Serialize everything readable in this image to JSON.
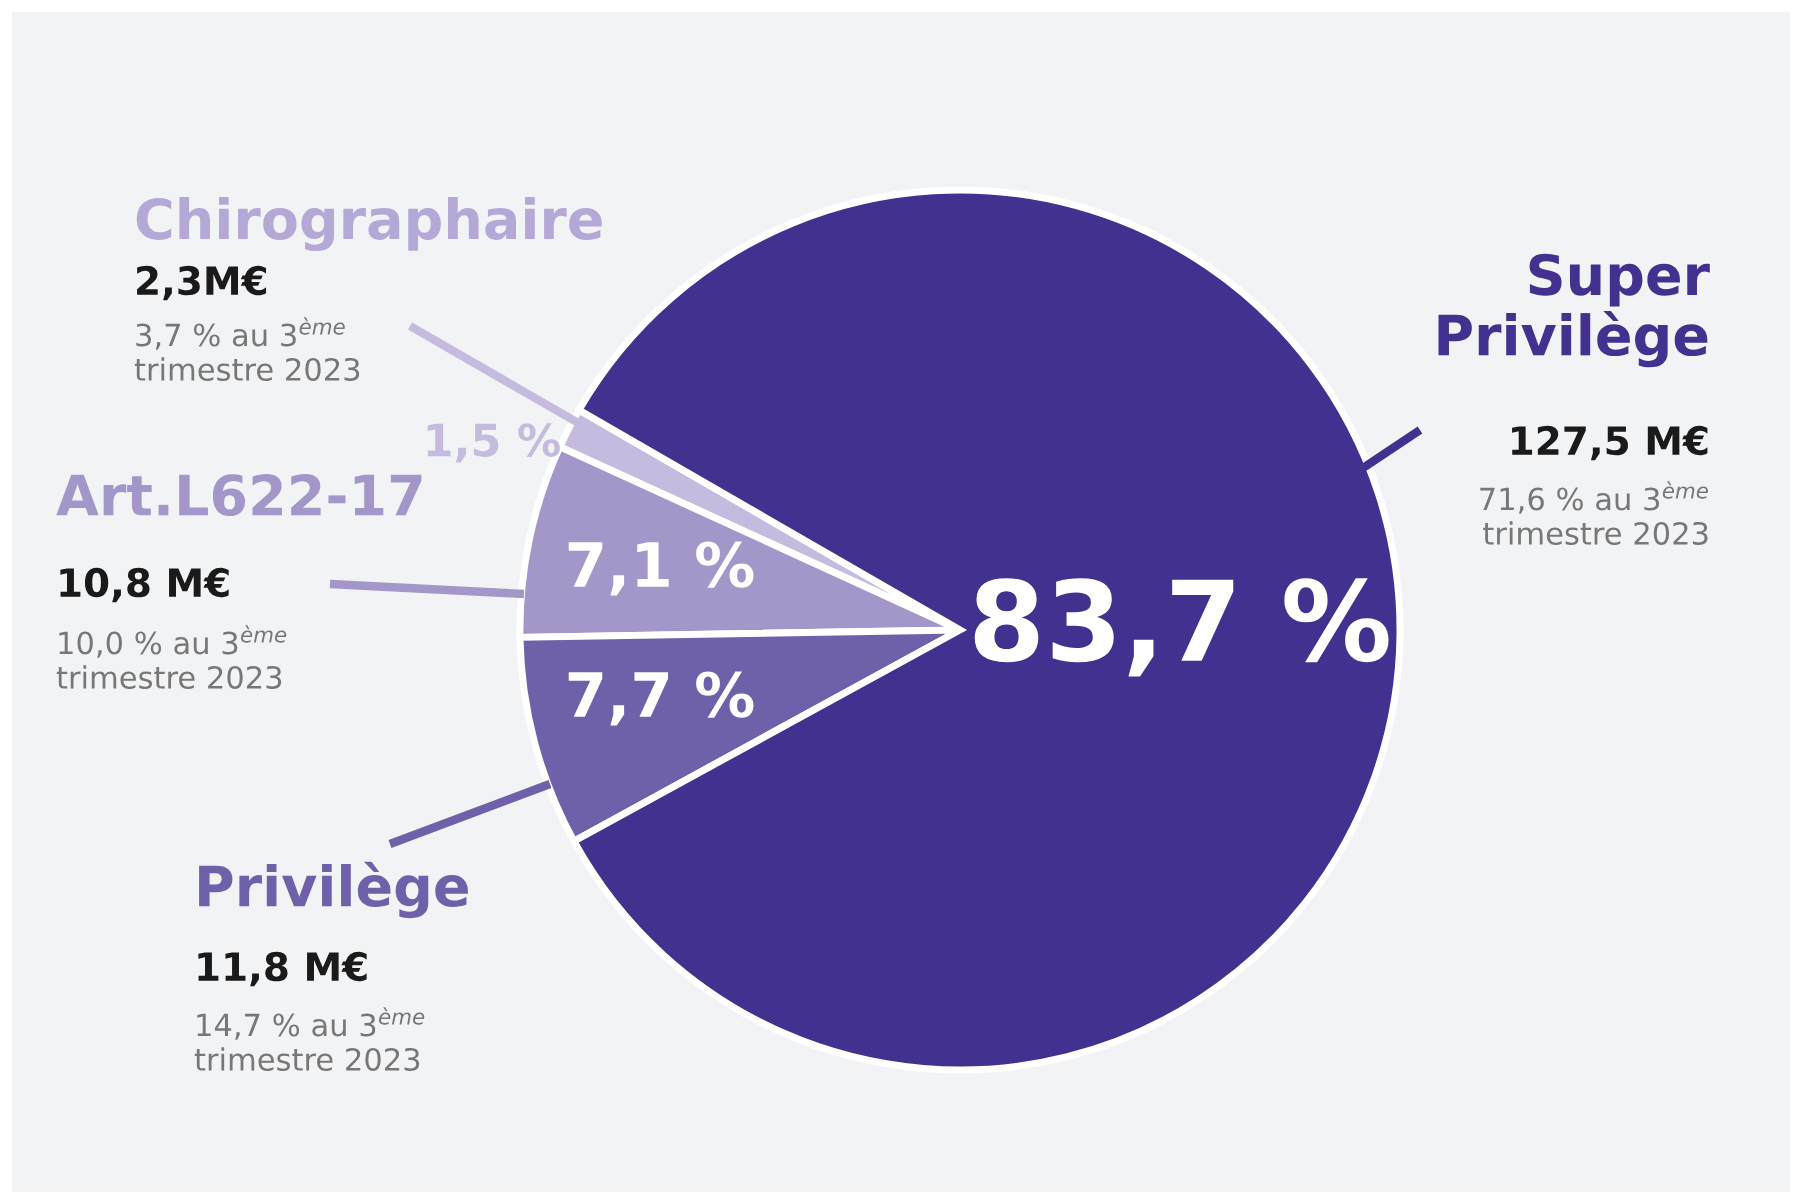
{
  "chart_data": {
    "type": "pie",
    "categories": [
      "Chirographaire",
      "Art.L622-17",
      "Privilège",
      "Super Privilège"
    ],
    "values": [
      1.5,
      7.1,
      7.7,
      83.7
    ],
    "colors": [
      "#c4bbde",
      "#a396c9",
      "#6f60aa",
      "#43318f"
    ],
    "value_labels": [
      "1,5 %",
      "7,1 %",
      "7,7 %",
      "83,7 %"
    ],
    "annotations": [
      "2,3M€",
      "3,7 % au 3$^{ème}$\ntrimestre 2023",
      "10,8 M€",
      "10,0 % au 3$^{ème}$\ntrimestre 2023",
      "11,8 M€",
      "14,7 % au 3$^{ème}$\ntrimestre 2023",
      "127,5 M€",
      "71,6 % au 3$^{ème}$\ntrimestre 2023"
    ],
    "legend": false
  }
}
